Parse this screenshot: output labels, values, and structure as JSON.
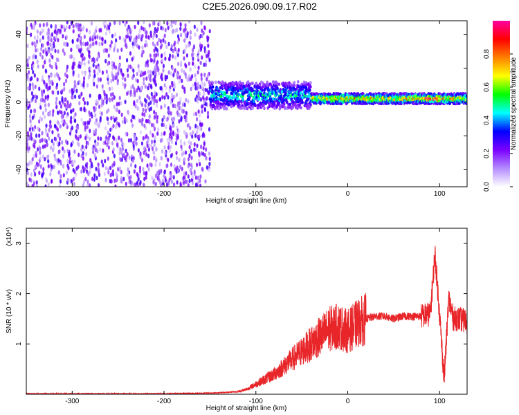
{
  "title": "C2E5.2026.090.09.17.R02",
  "chart_data": [
    {
      "type": "heatmap",
      "xlabel": "Height of straight line (km)",
      "ylabel": "Frequency (Hz)",
      "xlim": [
        -350,
        130
      ],
      "ylim": [
        -50,
        48
      ],
      "x_ticks": [
        -300,
        -200,
        -100,
        0,
        100
      ],
      "y_ticks": [
        -40,
        -20,
        0,
        20,
        40
      ],
      "colorbar": {
        "label": "Normalized spectral amplitude",
        "range": [
          0,
          1
        ],
        "ticks": [
          "0.0",
          "0.2",
          "0.4",
          "0.6",
          "0.8"
        ],
        "colors": [
          "#ffffff",
          "#b48cff",
          "#7a00ff",
          "#0000ff",
          "#00ffff",
          "#00ff00",
          "#ffff00",
          "#ff8000",
          "#ff0000",
          "#ff00a0"
        ]
      },
      "regions": [
        {
          "x_range": [
            -350,
            -150
          ],
          "freq_range": [
            -50,
            48
          ],
          "amplitude": 0.15,
          "description_level": "broadband noise"
        },
        {
          "x_range": [
            -150,
            -40
          ],
          "freq_center": 4,
          "freq_halfwidth": 8,
          "amplitude": 0.45
        },
        {
          "x_range": [
            -40,
            130
          ],
          "freq_center": 2,
          "freq_halfwidth": 3,
          "amplitude": 0.7
        },
        {
          "x_range": [
            85,
            100
          ],
          "freq_center": 2,
          "freq_halfwidth": 2,
          "amplitude": 0.95
        }
      ]
    },
    {
      "type": "line",
      "xlabel": "Height of straight line (km)",
      "ylabel": "SNR (10 * v/v)",
      "y_multiplier": "(x10⁴)",
      "xlim": [
        -350,
        130
      ],
      "ylim": [
        0,
        3.3
      ],
      "x_ticks": [
        -300,
        -200,
        -100,
        0,
        100
      ],
      "y_ticks": [
        1,
        2,
        3
      ],
      "series": [
        {
          "color": "#e8262a",
          "x": [
            -350,
            -300,
            -250,
            -200,
            -160,
            -140,
            -120,
            -110,
            -100,
            -90,
            -80,
            -70,
            -60,
            -50,
            -40,
            -30,
            -20,
            -10,
            0,
            10,
            20,
            30,
            40,
            50,
            60,
            70,
            80,
            90,
            95,
            100,
            105,
            110,
            115,
            120,
            130
          ],
          "y": [
            0.01,
            0.01,
            0.01,
            0.01,
            0.02,
            0.03,
            0.05,
            0.1,
            0.2,
            0.3,
            0.4,
            0.55,
            0.7,
            0.85,
            1.0,
            1.15,
            1.3,
            1.35,
            1.25,
            1.4,
            1.5,
            1.55,
            1.55,
            1.5,
            1.55,
            1.55,
            1.55,
            1.6,
            2.8,
            1.6,
            0.3,
            1.9,
            1.5,
            1.5,
            1.45
          ]
        }
      ]
    }
  ]
}
